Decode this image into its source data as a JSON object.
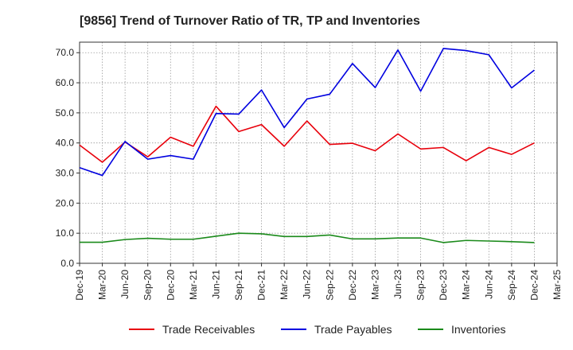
{
  "chart_data": {
    "type": "line",
    "title": "[9856]  Trend of Turnover Ratio of TR, TP and Inventories",
    "xlabel": "",
    "ylabel": "",
    "ylim": [
      0,
      73.5
    ],
    "yticks": [
      "0.0",
      "10.0",
      "20.0",
      "30.0",
      "40.0",
      "50.0",
      "60.0",
      "70.0"
    ],
    "x_tick_labels": [
      "Dec-19",
      "Mar-20",
      "Jun-20",
      "Sep-20",
      "Dec-20",
      "Mar-21",
      "Jun-21",
      "Sep-21",
      "Dec-21",
      "Mar-22",
      "Jun-22",
      "Sep-22",
      "Dec-22",
      "Mar-23",
      "Jun-23",
      "Sep-23",
      "Dec-23",
      "Mar-24",
      "Jun-24",
      "Sep-24",
      "Dec-24",
      "Mar-25"
    ],
    "categories": [
      "Dec-19",
      "Mar-20",
      "Jun-20",
      "Sep-20",
      "Dec-20",
      "Mar-21",
      "Jun-21",
      "Sep-21",
      "Dec-21",
      "Mar-22",
      "Jun-22",
      "Sep-22",
      "Dec-22",
      "Mar-23",
      "Jun-23",
      "Sep-23",
      "Dec-23",
      "Mar-24",
      "Jun-24",
      "Sep-24",
      "Dec-24"
    ],
    "grid": true,
    "legend_position": "bottom",
    "series": [
      {
        "name": "Trade Receivables",
        "color": "#e8000b",
        "values": [
          39.3,
          33.6,
          40.3,
          35.4,
          41.9,
          38.9,
          52.2,
          43.8,
          46.1,
          38.9,
          47.3,
          39.5,
          39.9,
          37.4,
          43.0,
          38.0,
          38.5,
          34.1,
          38.5,
          36.2,
          40.0
        ]
      },
      {
        "name": "Trade Payables",
        "color": "#0000e0",
        "values": [
          31.8,
          29.2,
          40.5,
          34.6,
          35.8,
          34.6,
          49.8,
          49.6,
          57.6,
          45.1,
          54.6,
          56.2,
          66.4,
          58.4,
          70.9,
          57.2,
          71.4,
          70.7,
          69.3,
          58.3,
          64.2
        ]
      },
      {
        "name": "Inventories",
        "color": "#1a8a1a",
        "values": [
          7.0,
          7.0,
          7.9,
          8.3,
          8.0,
          8.0,
          9.0,
          10.0,
          9.8,
          8.9,
          8.9,
          9.4,
          8.1,
          8.1,
          8.4,
          8.4,
          6.9,
          7.6,
          7.4,
          7.2,
          6.9
        ]
      }
    ]
  }
}
